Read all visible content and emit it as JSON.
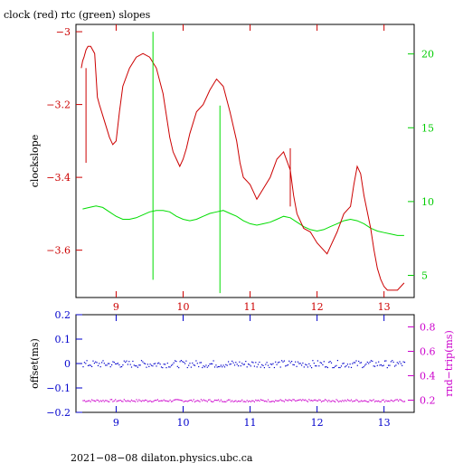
{
  "chart_data": [
    {
      "type": "line",
      "title": "clock (red) rtc (green) slopes",
      "xlabel": "",
      "ylabel": "clockslope",
      "xlim": [
        8.4,
        13.45
      ],
      "x_ticks": [
        9,
        10,
        11,
        12,
        13
      ],
      "ylim": [
        -3.73,
        -2.98
      ],
      "y_ticks": [
        -3.0,
        -3.2,
        -3.4,
        -3.6
      ],
      "y2lim": [
        3.5,
        22.0
      ],
      "y2_ticks": [
        5,
        10,
        15,
        20
      ],
      "grid": false,
      "series": [
        {
          "color": "#cc0000",
          "axis": "left",
          "x": [
            8.48,
            8.5,
            8.52,
            8.55,
            8.58,
            8.62,
            8.68,
            8.72,
            8.75,
            8.8,
            8.85,
            8.9,
            8.95,
            9.0,
            9.05,
            9.1,
            9.2,
            9.3,
            9.4,
            9.5,
            9.6,
            9.7,
            9.8,
            9.85,
            9.9,
            9.95,
            10.0,
            10.05,
            10.1,
            10.2,
            10.3,
            10.4,
            10.5,
            10.6,
            10.7,
            10.8,
            10.85,
            10.9,
            10.95,
            11.0,
            11.05,
            11.1,
            11.2,
            11.3,
            11.4,
            11.5,
            11.6,
            11.65,
            11.7,
            11.8,
            11.9,
            12.0,
            12.1,
            12.15,
            12.2,
            12.3,
            12.4,
            12.5,
            12.55,
            12.6,
            12.65,
            12.7,
            12.8,
            12.85,
            12.9,
            12.95,
            13.0,
            13.05,
            13.1,
            13.2,
            13.3
          ],
          "y": [
            -3.1,
            -3.08,
            -3.07,
            -3.05,
            -3.04,
            -3.04,
            -3.06,
            -3.18,
            -3.2,
            -3.23,
            -3.26,
            -3.29,
            -3.31,
            -3.3,
            -3.22,
            -3.15,
            -3.1,
            -3.07,
            -3.06,
            -3.07,
            -3.1,
            -3.17,
            -3.29,
            -3.33,
            -3.35,
            -3.37,
            -3.35,
            -3.32,
            -3.28,
            -3.22,
            -3.2,
            -3.16,
            -3.13,
            -3.15,
            -3.22,
            -3.3,
            -3.36,
            -3.4,
            -3.41,
            -3.42,
            -3.44,
            -3.46,
            -3.43,
            -3.4,
            -3.35,
            -3.33,
            -3.38,
            -3.45,
            -3.5,
            -3.54,
            -3.55,
            -3.58,
            -3.6,
            -3.61,
            -3.59,
            -3.55,
            -3.5,
            -3.48,
            -3.42,
            -3.37,
            -3.39,
            -3.45,
            -3.54,
            -3.6,
            -3.65,
            -3.68,
            -3.7,
            -3.71,
            -3.71,
            -3.71,
            -3.69
          ]
        },
        {
          "color": "#00cc00",
          "axis": "right",
          "x": [
            8.5,
            8.6,
            8.7,
            8.8,
            8.9,
            9.0,
            9.1,
            9.2,
            9.3,
            9.4,
            9.5,
            9.6,
            9.7,
            9.8,
            9.9,
            10.0,
            10.1,
            10.2,
            10.3,
            10.4,
            10.5,
            10.6,
            10.7,
            10.8,
            10.9,
            11.0,
            11.1,
            11.2,
            11.3,
            11.4,
            11.5,
            11.6,
            11.7,
            11.8,
            11.9,
            12.0,
            12.1,
            12.2,
            12.3,
            12.4,
            12.5,
            12.6,
            12.7,
            12.8,
            12.9,
            13.0,
            13.1,
            13.2,
            13.3
          ],
          "y": [
            9.5,
            9.6,
            9.7,
            9.6,
            9.3,
            9.0,
            8.8,
            8.8,
            8.9,
            9.1,
            9.3,
            9.4,
            9.4,
            9.3,
            9.0,
            8.8,
            8.7,
            8.8,
            9.0,
            9.2,
            9.3,
            9.4,
            9.2,
            9.0,
            8.7,
            8.5,
            8.4,
            8.5,
            8.6,
            8.8,
            9.0,
            8.9,
            8.6,
            8.3,
            8.1,
            8.0,
            8.1,
            8.3,
            8.5,
            8.7,
            8.8,
            8.7,
            8.5,
            8.2,
            8.0,
            7.9,
            7.8,
            7.7,
            7.7
          ]
        }
      ]
    },
    {
      "type": "scatter",
      "title": "",
      "xlabel": "",
      "ylabel": "offset(ms)",
      "y2label": "rnd−trip(ms)",
      "xlim": [
        8.4,
        13.45
      ],
      "x_ticks": [
        9,
        10,
        11,
        12,
        13
      ],
      "ylim": [
        -0.2,
        0.2
      ],
      "y_ticks": [
        0.2,
        0.1,
        0,
        -0.1,
        -0.2
      ],
      "y2lim": [
        0.1,
        0.9
      ],
      "y2_ticks": [
        0.8,
        0.6,
        0.4,
        0.2
      ],
      "grid": false,
      "series": [
        {
          "color": "#0000cc",
          "axis": "left",
          "x_range": [
            8.5,
            13.3
          ],
          "level": 0.0,
          "spread": 0.015
        },
        {
          "color": "#cc00cc",
          "axis": "right",
          "x_range": [
            8.5,
            13.3
          ],
          "level": 0.2,
          "spread": 0.01
        }
      ]
    }
  ],
  "footer": "2021−08−08  dilaton.physics.ubc.ca"
}
